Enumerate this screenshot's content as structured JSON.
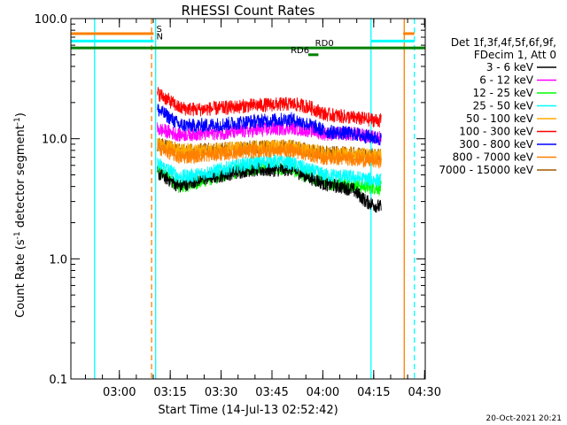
{
  "chart_data": {
    "type": "line",
    "title": "RHESSI Count Rates",
    "xlabel": "Start Time (14-Jul-13 02:52:42)",
    "ylabel_main": "Count Rate (s",
    "ylabel_sup1": "-1",
    "ylabel_mid": " detector segment",
    "ylabel_sup2": "-1",
    "ylabel_end": ")",
    "y_scale": "log",
    "ylim": [
      0.1,
      100
    ],
    "xlim_minutes": [
      -7.0,
      97.5
    ],
    "x_ticks": [
      {
        "label": "03:00",
        "t": 7.3
      },
      {
        "label": "03:15",
        "t": 22.3
      },
      {
        "label": "03:30",
        "t": 37.3
      },
      {
        "label": "03:45",
        "t": 52.3
      },
      {
        "label": "04:00",
        "t": 67.3
      },
      {
        "label": "04:15",
        "t": 82.3
      },
      {
        "label": "04:30",
        "t": 97.3
      }
    ],
    "y_ticks": [
      {
        "label": "100.0",
        "v": 100
      },
      {
        "label": "10.0",
        "v": 10
      },
      {
        "label": "1.0",
        "v": 1
      },
      {
        "label": "0.1",
        "v": 0.1
      }
    ],
    "legend_header": [
      "Det 1f,3f,4f,5f,6f,9f,",
      "FDecim 1, Att 0"
    ],
    "legend_position": "right",
    "series": [
      {
        "name": "3 - 6 keV",
        "color": "#000000",
        "knots": [
          [
            18.5,
            5.2
          ],
          [
            25,
            4.0
          ],
          [
            30,
            4.5
          ],
          [
            38,
            5.0
          ],
          [
            45,
            5.5
          ],
          [
            52,
            5.5
          ],
          [
            58,
            5.6
          ],
          [
            63,
            4.8
          ],
          [
            68,
            4.2
          ],
          [
            76,
            3.8
          ],
          [
            80,
            3.0
          ],
          [
            84,
            2.7
          ]
        ]
      },
      {
        "name": "6 - 12 keV",
        "color": "#ff00ff",
        "knots": [
          [
            18.5,
            12.0
          ],
          [
            25,
            10.8
          ],
          [
            30,
            11.0
          ],
          [
            38,
            11.2
          ],
          [
            45,
            11.6
          ],
          [
            52,
            12.0
          ],
          [
            58,
            12.4
          ],
          [
            63,
            11.8
          ],
          [
            68,
            11.0
          ],
          [
            76,
            11.0
          ],
          [
            80,
            10.5
          ],
          [
            84,
            10.2
          ]
        ]
      },
      {
        "name": "12 - 25 keV",
        "color": "#00ff00",
        "knots": [
          [
            18.5,
            5.5
          ],
          [
            25,
            4.0
          ],
          [
            30,
            4.3
          ],
          [
            38,
            5.0
          ],
          [
            45,
            5.6
          ],
          [
            52,
            5.8
          ],
          [
            58,
            5.6
          ],
          [
            63,
            4.8
          ],
          [
            68,
            4.3
          ],
          [
            76,
            4.2
          ],
          [
            80,
            4.0
          ],
          [
            84,
            3.9
          ]
        ]
      },
      {
        "name": "25 - 50 keV",
        "color": "#00ffff",
        "knots": [
          [
            18.5,
            6.2
          ],
          [
            25,
            4.8
          ],
          [
            30,
            5.0
          ],
          [
            38,
            5.6
          ],
          [
            45,
            6.2
          ],
          [
            52,
            6.5
          ],
          [
            58,
            6.3
          ],
          [
            63,
            5.5
          ],
          [
            68,
            5.0
          ],
          [
            76,
            4.8
          ],
          [
            80,
            4.6
          ],
          [
            84,
            4.5
          ]
        ]
      },
      {
        "name": "50 - 100 keV",
        "color": "#ffaa00",
        "knots": [
          [
            18.5,
            9.0
          ],
          [
            25,
            8.0
          ],
          [
            30,
            8.0
          ],
          [
            38,
            8.2
          ],
          [
            45,
            8.4
          ],
          [
            52,
            8.6
          ],
          [
            58,
            8.6
          ],
          [
            63,
            8.0
          ],
          [
            68,
            7.6
          ],
          [
            76,
            7.5
          ],
          [
            80,
            7.3
          ],
          [
            84,
            7.2
          ]
        ]
      },
      {
        "name": "100 - 300 keV",
        "color": "#ff0000",
        "knots": [
          [
            18.5,
            24.0
          ],
          [
            25,
            18.0
          ],
          [
            30,
            17.5
          ],
          [
            38,
            18.0
          ],
          [
            45,
            18.8
          ],
          [
            52,
            19.2
          ],
          [
            58,
            19.5
          ],
          [
            63,
            18.5
          ],
          [
            68,
            16.0
          ],
          [
            76,
            15.0
          ],
          [
            80,
            14.5
          ],
          [
            84,
            14.2
          ]
        ]
      },
      {
        "name": "300 - 800 keV",
        "color": "#0000ff",
        "knots": [
          [
            18.5,
            17.5
          ],
          [
            25,
            13.0
          ],
          [
            30,
            12.8
          ],
          [
            38,
            13.2
          ],
          [
            45,
            13.8
          ],
          [
            52,
            14.2
          ],
          [
            58,
            14.5
          ],
          [
            63,
            13.2
          ],
          [
            68,
            11.5
          ],
          [
            76,
            11.0
          ],
          [
            80,
            10.5
          ],
          [
            84,
            10.0
          ]
        ]
      },
      {
        "name": "800 - 7000 keV",
        "color": "#ff8000",
        "knots": [
          [
            18.5,
            8.5
          ],
          [
            25,
            7.0
          ],
          [
            30,
            7.2
          ],
          [
            38,
            7.5
          ],
          [
            45,
            7.8
          ],
          [
            52,
            8.0
          ],
          [
            58,
            8.0
          ],
          [
            63,
            7.4
          ],
          [
            68,
            6.9
          ],
          [
            76,
            6.8
          ],
          [
            80,
            6.6
          ],
          [
            84,
            6.5
          ]
        ]
      },
      {
        "name": "7000 - 15000 keV",
        "color": "#a05a00",
        "knots": [
          [
            18.5,
            9.0
          ],
          [
            25,
            8.0
          ],
          [
            30,
            8.0
          ],
          [
            38,
            8.2
          ],
          [
            45,
            8.4
          ],
          [
            52,
            8.6
          ],
          [
            58,
            8.6
          ],
          [
            63,
            8.0
          ],
          [
            68,
            7.6
          ],
          [
            76,
            7.5
          ],
          [
            80,
            7.3
          ],
          [
            84,
            7.2
          ]
        ]
      }
    ],
    "time_coverage": {
      "start_minutes": 18.5,
      "end_minutes": 84.5
    },
    "markers": [
      {
        "label": "S",
        "color": "#ff8000",
        "y": 75,
        "segments": [
          [
            -7.0,
            17.4
          ],
          [
            91.0,
            94.3
          ]
        ],
        "label_at": 17.7
      },
      {
        "label": "N",
        "color": "#00ffff",
        "y": 65,
        "segments": [
          [
            -7.0,
            17.4
          ],
          [
            81.5,
            94.3
          ]
        ],
        "label_at": 17.7
      },
      {
        "label": "RD0",
        "color": "#008000",
        "y": 57,
        "segments": [
          [
            -7.0,
            97.5
          ]
        ],
        "label_at": 64.5
      },
      {
        "label": "RD6",
        "color": "#008000",
        "y": 50,
        "segments": [
          [
            63.0,
            66.0
          ]
        ],
        "label_at": 57.3
      }
    ],
    "vlines": [
      {
        "t": 0.0,
        "color": "#00ffff",
        "dash": false
      },
      {
        "t": 16.8,
        "color": "#ff8000",
        "dash": true
      },
      {
        "t": 18.0,
        "color": "#00ffff",
        "dash": false
      },
      {
        "t": 81.5,
        "color": "#00ffff",
        "dash": false
      },
      {
        "t": 91.3,
        "color": "#ff8000",
        "dash": false
      },
      {
        "t": 94.3,
        "color": "#00ffff",
        "dash": true
      }
    ],
    "footer_date": "20-Oct-2021 20:21"
  }
}
